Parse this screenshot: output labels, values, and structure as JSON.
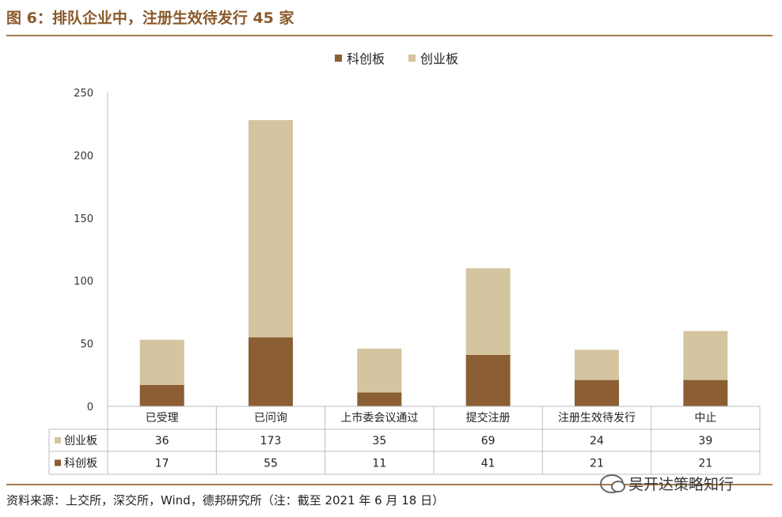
{
  "header": {
    "title": "图 6：排队企业中，注册生效待发行 45 家"
  },
  "footer": {
    "source": "资料来源：上交所，深交所，Wind，德邦研究所（注：截至 2021 年 6 月 18 日）",
    "watermark": "吴开达策略知行"
  },
  "colors": {
    "kcb": "#8b5e34",
    "cyb": "#d4c4a0",
    "accent": "#a57a4c"
  },
  "chart_data": {
    "type": "bar",
    "stacked": true,
    "categories": [
      "已受理",
      "已问询",
      "上市委会议通过",
      "提交注册",
      "注册生效待发行",
      "中止"
    ],
    "series": [
      {
        "name": "科创板",
        "values": [
          17,
          55,
          11,
          41,
          21,
          21
        ]
      },
      {
        "name": "创业板",
        "values": [
          36,
          173,
          35,
          69,
          24,
          39
        ]
      }
    ],
    "ylim": [
      0,
      250
    ],
    "yticks": [
      0,
      50,
      100,
      150,
      200,
      250
    ],
    "legend_position": "top-center",
    "grid": false,
    "data_table": true
  }
}
